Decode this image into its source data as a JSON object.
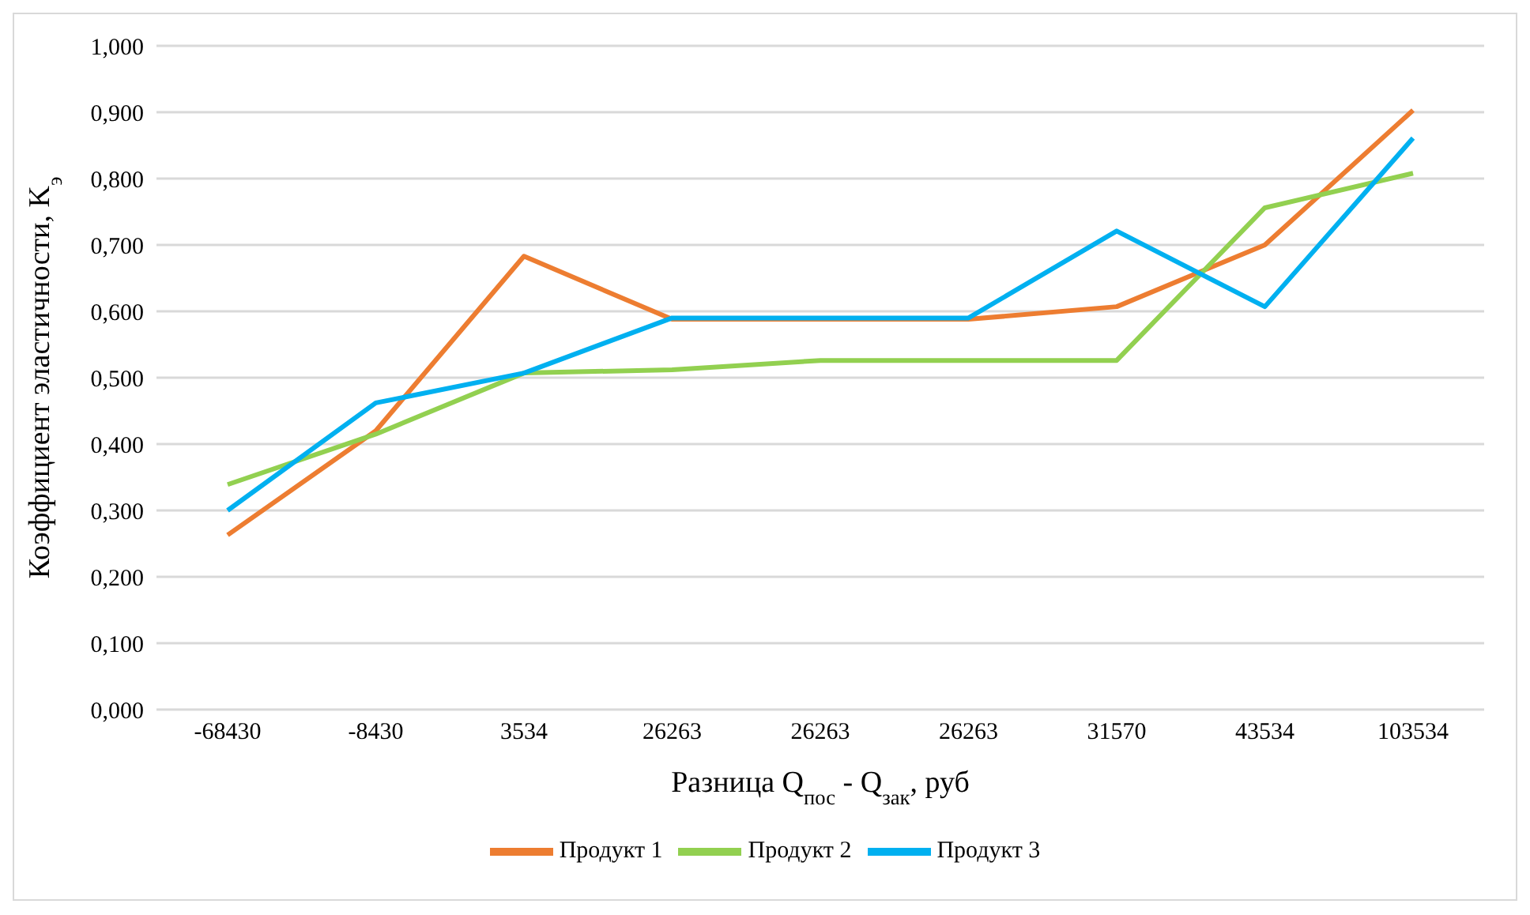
{
  "chart_data": {
    "type": "line",
    "xlabel": "Разница Q$_{пос}$ - Q$_{зак}$, руб",
    "ylabel": "Коэффициент эластичности, K$_{э}$",
    "categories": [
      "-68430",
      "-8430",
      "3534",
      "26263",
      "26263",
      "26263",
      "31570",
      "43534",
      "103534"
    ],
    "series": [
      {
        "name": "Продукт 1",
        "color": "#ed7d31",
        "values": [
          0.263,
          0.42,
          0.683,
          0.588,
          0.588,
          0.588,
          0.607,
          0.7,
          0.903
        ]
      },
      {
        "name": "Продукт 2",
        "color": "#92d050",
        "values": [
          0.339,
          0.415,
          0.507,
          0.512,
          0.526,
          0.526,
          0.526,
          0.756,
          0.808
        ]
      },
      {
        "name": "Продукт 3",
        "color": "#00b0f0",
        "values": [
          0.3,
          0.462,
          0.507,
          0.59,
          0.59,
          0.59,
          0.721,
          0.607,
          0.861
        ]
      }
    ],
    "ylim": [
      0,
      1
    ],
    "yticks": [
      {
        "value": 0,
        "label": "0,000"
      },
      {
        "value": 0.1,
        "label": "0,100"
      },
      {
        "value": 0.2,
        "label": "0,200"
      },
      {
        "value": 0.3,
        "label": "0,300"
      },
      {
        "value": 0.4,
        "label": "0,400"
      },
      {
        "value": 0.5,
        "label": "0,500"
      },
      {
        "value": 0.6,
        "label": "0,600"
      },
      {
        "value": 0.7,
        "label": "0,700"
      },
      {
        "value": 0.8,
        "label": "0,800"
      },
      {
        "value": 0.9,
        "label": "0,900"
      },
      {
        "value": 1,
        "label": "1,000"
      }
    ],
    "grid": "y",
    "legend": "bottom",
    "marker": "none",
    "line_style": "solid"
  }
}
